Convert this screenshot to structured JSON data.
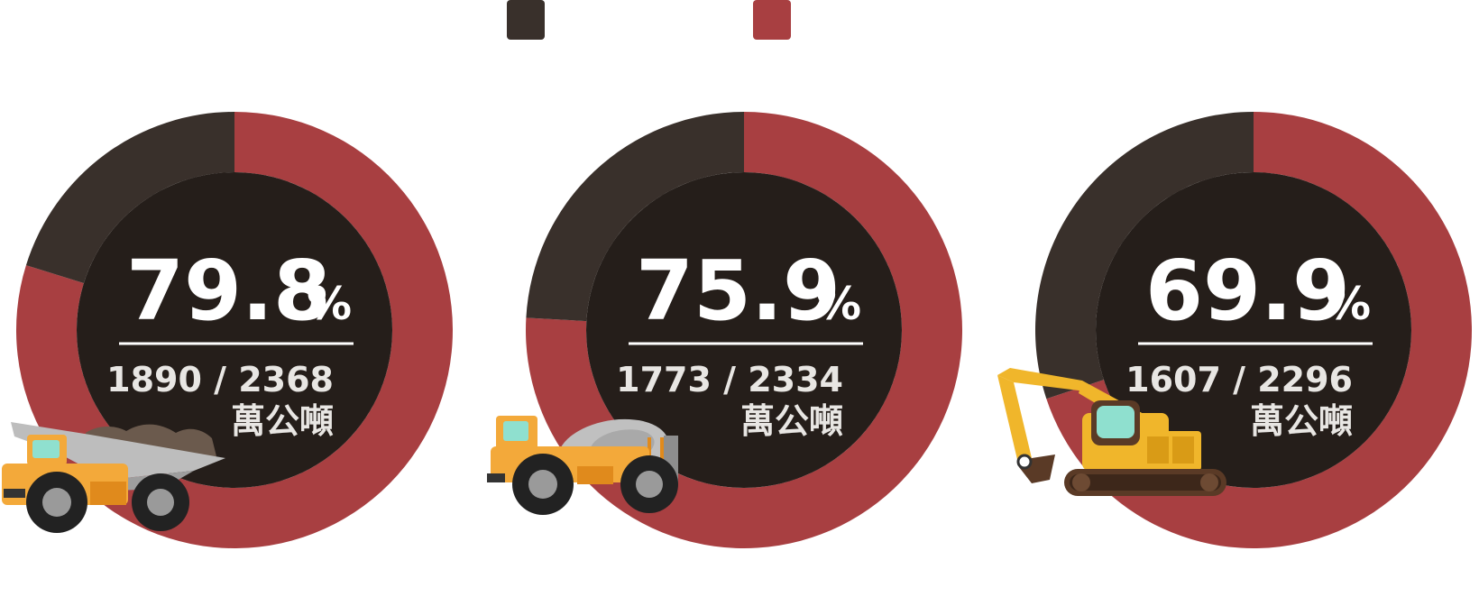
{
  "colors": {
    "dark": "#39302b",
    "red": "#a83f41",
    "inner": "#251e1a",
    "text": "#ffffff"
  },
  "legend": [
    {
      "color": "#39302b",
      "label": ""
    },
    {
      "color": "#a83f41",
      "label": ""
    }
  ],
  "chart_data": [
    {
      "type": "pie",
      "values": [
        79.8,
        20.2
      ],
      "percent_label": "79.8",
      "percent_sign": "%",
      "ratio_label": "1890 / 2368",
      "unit_label": "萬公噸",
      "icon": "dump-truck-icon"
    },
    {
      "type": "pie",
      "values": [
        75.9,
        24.1
      ],
      "percent_label": "75.9",
      "percent_sign": "%",
      "ratio_label": "1773 / 2334",
      "unit_label": "萬公噸",
      "icon": "cement-mixer-truck-icon"
    },
    {
      "type": "pie",
      "values": [
        69.9,
        30.1
      ],
      "percent_label": "69.9",
      "percent_sign": "%",
      "ratio_label": "1607 / 2296",
      "unit_label": "萬公噸",
      "icon": "excavator-icon"
    }
  ]
}
